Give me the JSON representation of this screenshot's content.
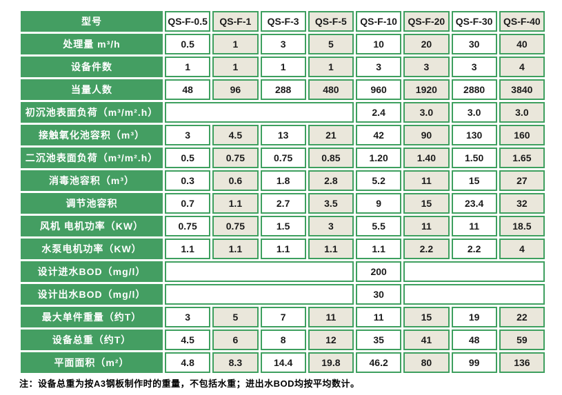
{
  "colors": {
    "green": "#449e62",
    "border": "#3d9f5e",
    "beige": "#eae7db",
    "text_dark": "#1a1a1a",
    "text_light": "#ffffff"
  },
  "table": {
    "corner_label": "型号",
    "models": [
      "QS-F-0.5",
      "QS-F-1",
      "QS-F-3",
      "QS-F-5",
      "QS-F-10",
      "QS-F-20",
      "QS-F-30",
      "QS-F-40"
    ],
    "rows": [
      {
        "label": "处理量 m³/h",
        "values": [
          "0.5",
          "1",
          "3",
          "5",
          "10",
          "20",
          "30",
          "40"
        ]
      },
      {
        "label": "设备件数",
        "values": [
          "1",
          "1",
          "1",
          "1",
          "3",
          "3",
          "3",
          "4"
        ]
      },
      {
        "label": "当量人数",
        "values": [
          "48",
          "96",
          "288",
          "480",
          "960",
          "1920",
          "2880",
          "3840"
        ]
      },
      {
        "label": "初沉池表面负荷（m³/m².h）",
        "cells": [
          {
            "text": "",
            "span": 4,
            "beige": false
          },
          {
            "text": "2.4",
            "span": 1,
            "beige": false
          },
          {
            "text": "3.0",
            "span": 1,
            "beige": true
          },
          {
            "text": "3.0",
            "span": 1,
            "beige": false
          },
          {
            "text": "3.0",
            "span": 1,
            "beige": true
          }
        ]
      },
      {
        "label": "接触氧化池容积（m³）",
        "values": [
          "3",
          "4.5",
          "13",
          "21",
          "42",
          "90",
          "130",
          "160"
        ]
      },
      {
        "label": "二沉池表面负荷（m³/m².h）",
        "values": [
          "0.5",
          "0.75",
          "0.75",
          "0.85",
          "1.20",
          "1.40",
          "1.50",
          "1.65"
        ]
      },
      {
        "label": "消毒池容积（m³）",
        "values": [
          "0.3",
          "0.6",
          "1.8",
          "2.8",
          "5.2",
          "11",
          "15",
          "27"
        ]
      },
      {
        "label": "调节池容积",
        "values": [
          "0.7",
          "1.1",
          "2.7",
          "3.5",
          "9",
          "15",
          "23.4",
          "32"
        ]
      },
      {
        "label": "风机 电机功率（KW）",
        "values": [
          "0.75",
          "0.75",
          "1.5",
          "3",
          "5.5",
          "11",
          "11",
          "18.5"
        ]
      },
      {
        "label": "水泵电机功率（KW）",
        "values": [
          "1.1",
          "1.1",
          "1.1",
          "1.1",
          "1.1",
          "2.2",
          "2.2",
          "4"
        ]
      },
      {
        "label": "设计进水BOD（mg/l）",
        "cells": [
          {
            "text": "",
            "span": 4,
            "beige": false
          },
          {
            "text": "200",
            "span": 1,
            "beige": false
          },
          {
            "text": "",
            "span": 3,
            "beige": false
          }
        ]
      },
      {
        "label": "设计出水BOD（mg/l）",
        "cells": [
          {
            "text": "",
            "span": 4,
            "beige": false
          },
          {
            "text": "30",
            "span": 1,
            "beige": false
          },
          {
            "text": "",
            "span": 3,
            "beige": false
          }
        ]
      },
      {
        "label": "最大单件重量（约T）",
        "values": [
          "3",
          "5",
          "7",
          "11",
          "11",
          "15",
          "19",
          "22"
        ]
      },
      {
        "label": "设备总重（约T）",
        "values": [
          "4.5",
          "6",
          "8",
          "12",
          "35",
          "41",
          "48",
          "59"
        ]
      },
      {
        "label": "平面面积（m²）",
        "values": [
          "4.8",
          "8.3",
          "14.4",
          "19.8",
          "46.2",
          "80",
          "99",
          "136"
        ]
      }
    ]
  },
  "note": "注：设备总重为按A3钢板制作时的重量，不包括水重；进出水BOD均按平均数计。"
}
